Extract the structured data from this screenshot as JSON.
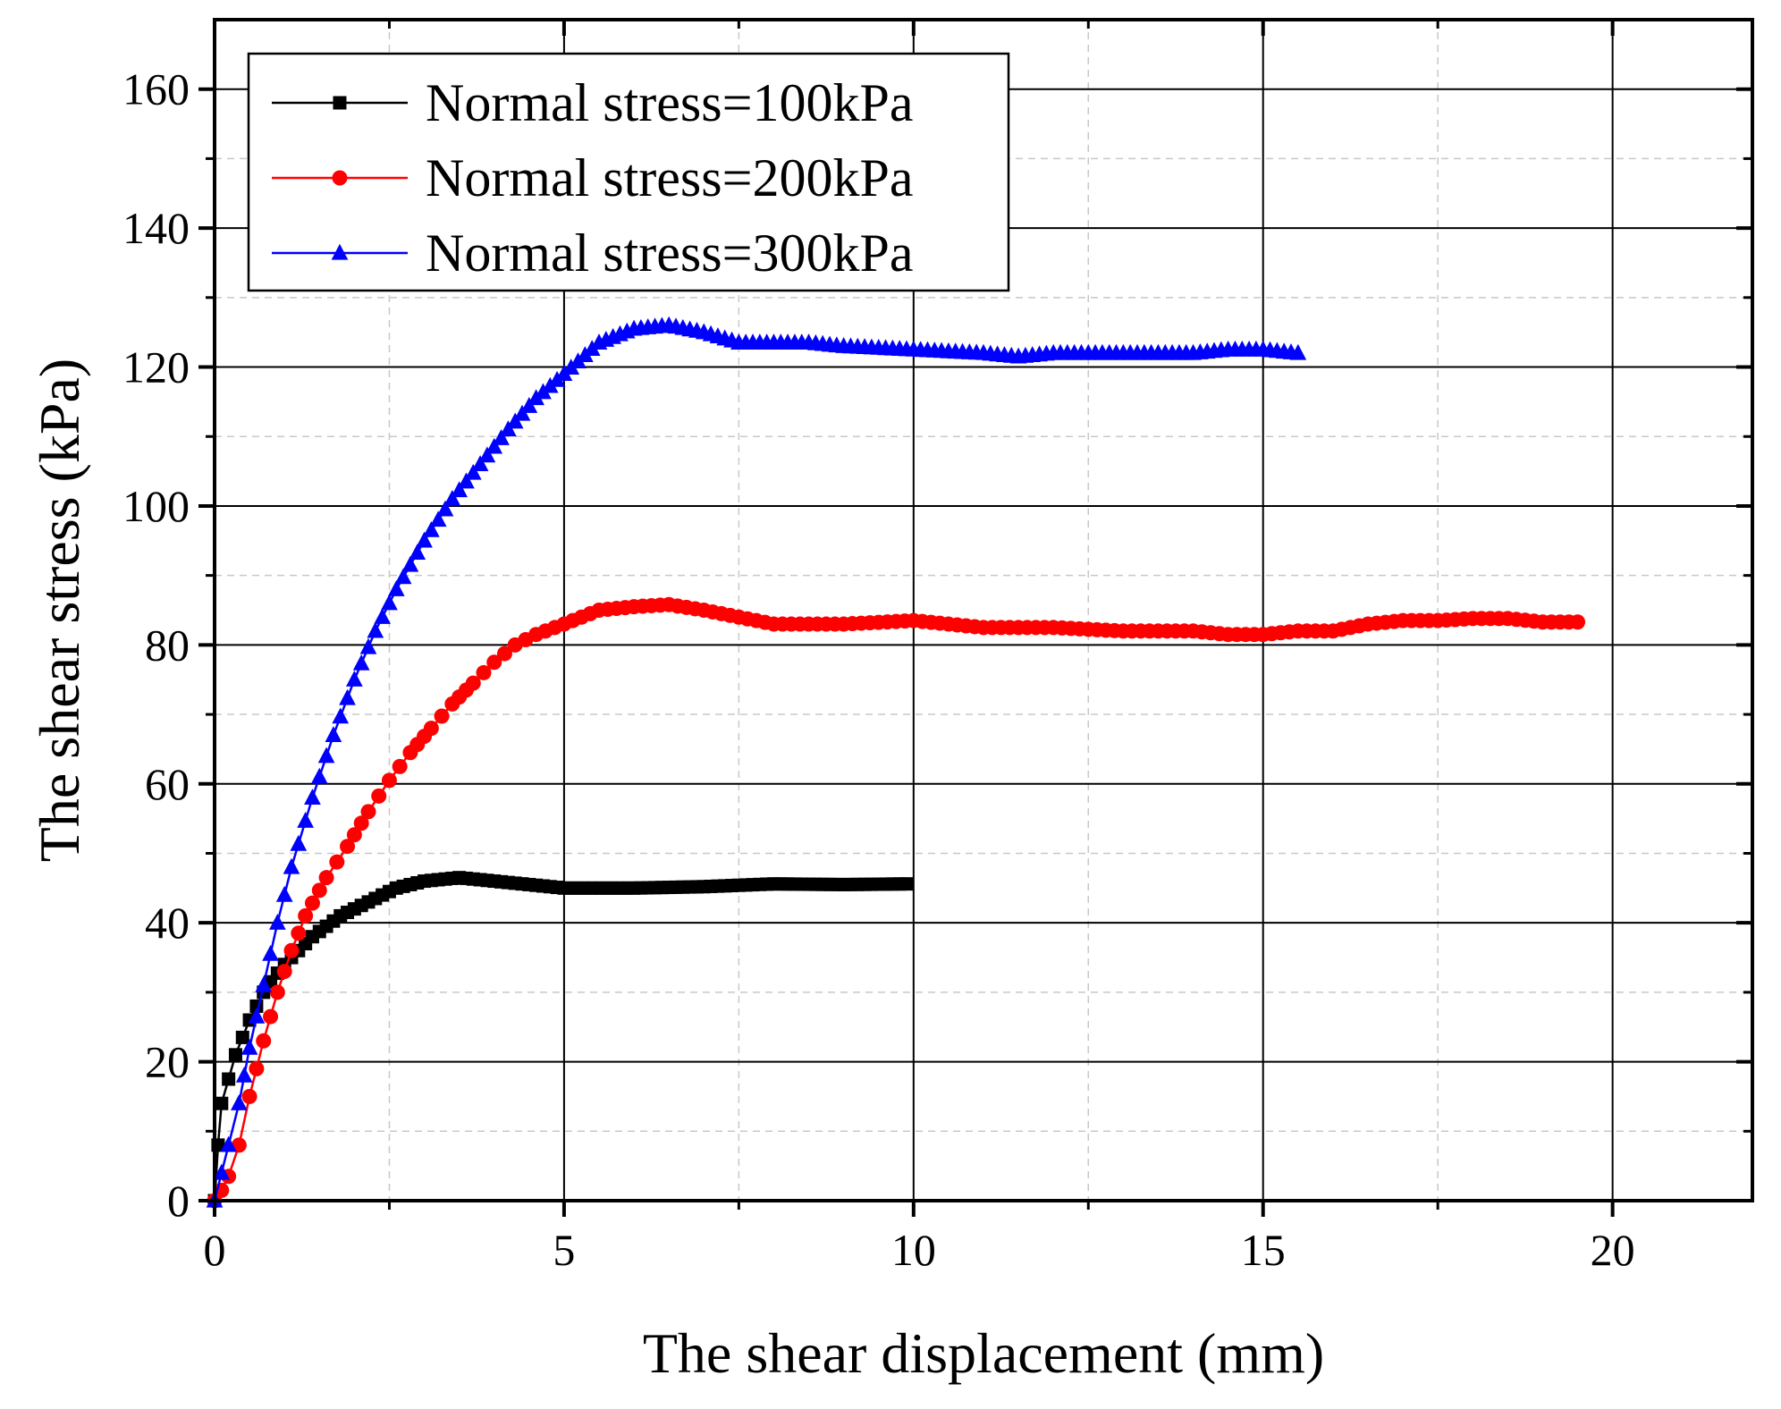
{
  "chart_data": {
    "type": "line",
    "title": "",
    "xlabel": "The shear displacement (mm)",
    "ylabel": "The shear stress (kPa)",
    "xlim": [
      0,
      22
    ],
    "ylim": [
      0,
      170
    ],
    "xticks": [
      0,
      5,
      10,
      15,
      20
    ],
    "yticks": [
      0,
      20,
      40,
      60,
      80,
      100,
      120,
      140,
      160
    ],
    "xtick_labels": [
      "0",
      "5",
      "10",
      "15",
      "20"
    ],
    "ytick_labels": [
      "0",
      "20",
      "40",
      "60",
      "80",
      "100",
      "120",
      "140",
      "160"
    ],
    "grid": true,
    "legend_position": "top-left",
    "series": [
      {
        "name": "Normal stress=100kPa",
        "color": "#000000",
        "marker": "square",
        "x": [
          0,
          0.05,
          0.1,
          0.2,
          0.3,
          0.4,
          0.5,
          0.6,
          0.7,
          0.8,
          1.0,
          1.2,
          1.4,
          1.6,
          1.8,
          2.0,
          2.3,
          2.6,
          3.0,
          3.5,
          4.0,
          4.5,
          5.0,
          6.0,
          7.0,
          8.0,
          9.0,
          9.9
        ],
        "values": [
          0,
          8,
          14,
          17.5,
          21,
          23.5,
          26,
          28,
          30,
          31.5,
          34,
          36,
          38,
          39.5,
          41,
          42,
          43.5,
          45,
          46,
          46.5,
          46,
          45.5,
          45,
          45,
          45.2,
          45.6,
          45.5,
          45.6
        ]
      },
      {
        "name": "Normal stress=200kPa",
        "color": "#ff0000",
        "marker": "circle",
        "x": [
          0,
          0.1,
          0.2,
          0.35,
          0.5,
          0.7,
          0.9,
          1.1,
          1.3,
          1.6,
          1.9,
          2.2,
          2.5,
          2.8,
          3.1,
          3.4,
          3.7,
          4.0,
          4.3,
          4.6,
          5.0,
          5.5,
          6.0,
          6.5,
          7.0,
          7.5,
          8.0,
          9.0,
          10.0,
          11.0,
          12.0,
          13.0,
          14.0,
          14.5,
          15.0,
          15.5,
          16.0,
          16.5,
          17.0,
          17.5,
          18.0,
          18.5,
          19.0,
          19.5
        ],
        "values": [
          0,
          1.5,
          3.5,
          8,
          15,
          23,
          30,
          36,
          41,
          46.5,
          51,
          56,
          60.5,
          64.5,
          68,
          71.5,
          74.5,
          77.5,
          80,
          81.5,
          83,
          85,
          85.5,
          85.8,
          85,
          84,
          83,
          83,
          83.5,
          82.5,
          82.5,
          82,
          82,
          81.5,
          81.5,
          82,
          82,
          83,
          83.5,
          83.5,
          83.8,
          83.8,
          83.3,
          83.3
        ]
      },
      {
        "name": "Normal stress=300kPa",
        "color": "#0000ff",
        "marker": "triangle",
        "x": [
          0,
          0.1,
          0.2,
          0.35,
          0.5,
          0.7,
          0.9,
          1.1,
          1.4,
          1.7,
          2.0,
          2.3,
          2.6,
          3.0,
          3.4,
          3.8,
          4.2,
          4.6,
          5.0,
          5.5,
          6.0,
          6.5,
          7.0,
          7.5,
          8.0,
          8.5,
          9.0,
          10.0,
          11.0,
          11.5,
          12.0,
          13.0,
          14.0,
          14.5,
          15.0,
          15.5
        ],
        "values": [
          0,
          4,
          8,
          14,
          22,
          31,
          40,
          48,
          58,
          67,
          75,
          82,
          88,
          95,
          101,
          106,
          111,
          115.5,
          119,
          123.5,
          125.5,
          126,
          125,
          123.5,
          123.5,
          123.5,
          123,
          122.5,
          122,
          121.5,
          122,
          122,
          122,
          122.5,
          122.5,
          122
        ]
      }
    ]
  }
}
